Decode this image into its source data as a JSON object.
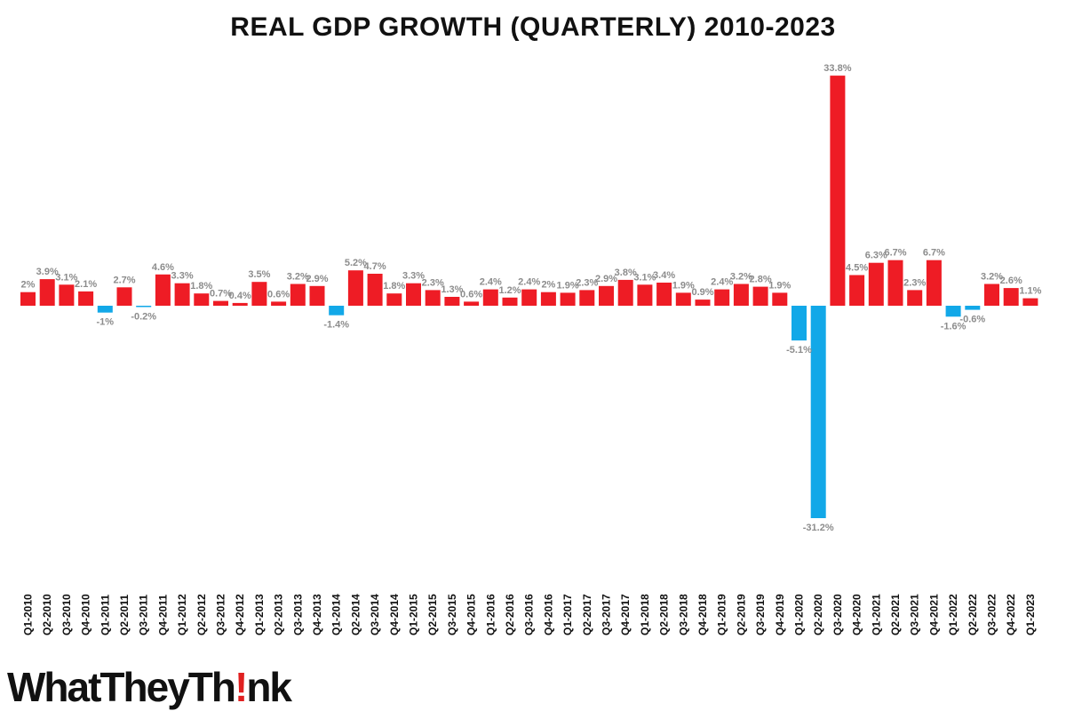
{
  "chart_data": {
    "type": "bar",
    "title": "REAL GDP GROWTH (QUARTERLY) 2010-2023",
    "xlabel": "",
    "ylabel": "",
    "categories": [
      "Q1-2010",
      "Q2-2010",
      "Q3-2010",
      "Q4-2010",
      "Q1-2011",
      "Q2-2011",
      "Q3-2011",
      "Q4-2011",
      "Q1-2012",
      "Q2-2012",
      "Q3-2012",
      "Q4-2012",
      "Q1-2013",
      "Q2-2013",
      "Q3-2013",
      "Q4-2013",
      "Q1-2014",
      "Q2-2014",
      "Q3-2014",
      "Q4-2014",
      "Q1-2015",
      "Q2-2015",
      "Q3-2015",
      "Q4-2015",
      "Q1-2016",
      "Q2-2016",
      "Q3-2016",
      "Q4-2016",
      "Q1-2017",
      "Q2-2017",
      "Q3-2017",
      "Q4-2017",
      "Q1-2018",
      "Q2-2018",
      "Q3-2018",
      "Q4-2018",
      "Q1-2019",
      "Q2-2019",
      "Q3-2019",
      "Q4-2019",
      "Q1-2020",
      "Q2-2020",
      "Q3-2020",
      "Q4-2020",
      "Q1-2021",
      "Q2-2021",
      "Q3-2021",
      "Q4-2021",
      "Q1-2022",
      "Q2-2022",
      "Q3-2022",
      "Q4-2022",
      "Q1-2023"
    ],
    "values": [
      2,
      3.9,
      3.1,
      2.1,
      -1,
      2.7,
      -0.2,
      4.6,
      3.3,
      1.8,
      0.7,
      0.4,
      3.5,
      0.6,
      3.2,
      2.9,
      -1.4,
      5.2,
      4.7,
      1.8,
      3.3,
      2.3,
      1.3,
      0.6,
      2.4,
      1.2,
      2.4,
      2,
      1.9,
      2.3,
      2.9,
      3.8,
      3.1,
      3.4,
      1.9,
      0.9,
      2.4,
      3.2,
      2.8,
      1.9,
      -5.1,
      -31.2,
      33.8,
      4.5,
      6.3,
      6.7,
      2.3,
      6.7,
      -1.6,
      -0.6,
      3.2,
      2.6,
      1.1
    ],
    "labels": [
      "2%",
      "3.9%",
      "3.1%",
      "2.1%",
      "-1%",
      "2.7%",
      "-0.2%",
      "4.6%",
      "3.3%",
      "1.8%",
      "0.7%",
      "0.4%",
      "3.5%",
      "0.6%",
      "3.2%",
      "2.9%",
      "-1.4%",
      "5.2%",
      "4.7%",
      "1.8%",
      "3.3%",
      "2.3%",
      "1.3%",
      "0.6%",
      "2.4%",
      "1.2%",
      "2.4%",
      "2%",
      "1.9%",
      "2.3%",
      "2.9%",
      "3.8%",
      "3.1%",
      "3.4%",
      "1.9%",
      "0.9%",
      "2.4%",
      "3.2%",
      "2.8%",
      "1.9%",
      "-5.1%",
      "-31.2%",
      "33.8%",
      "4.5%",
      "6.3%",
      "6.7%",
      "2.3%",
      "6.7%",
      "-1.6%",
      "-0.6%",
      "3.2%",
      "2.6%",
      "1.1%"
    ],
    "colors": {
      "positive": "#ee1c25",
      "negative": "#12a8e8",
      "label": "#8c8c8c"
    },
    "grid": false
  },
  "logo": {
    "prefix": "WhatTheyTh",
    "bang": "!",
    "suffix": "nk",
    "accent": "#e02020"
  }
}
